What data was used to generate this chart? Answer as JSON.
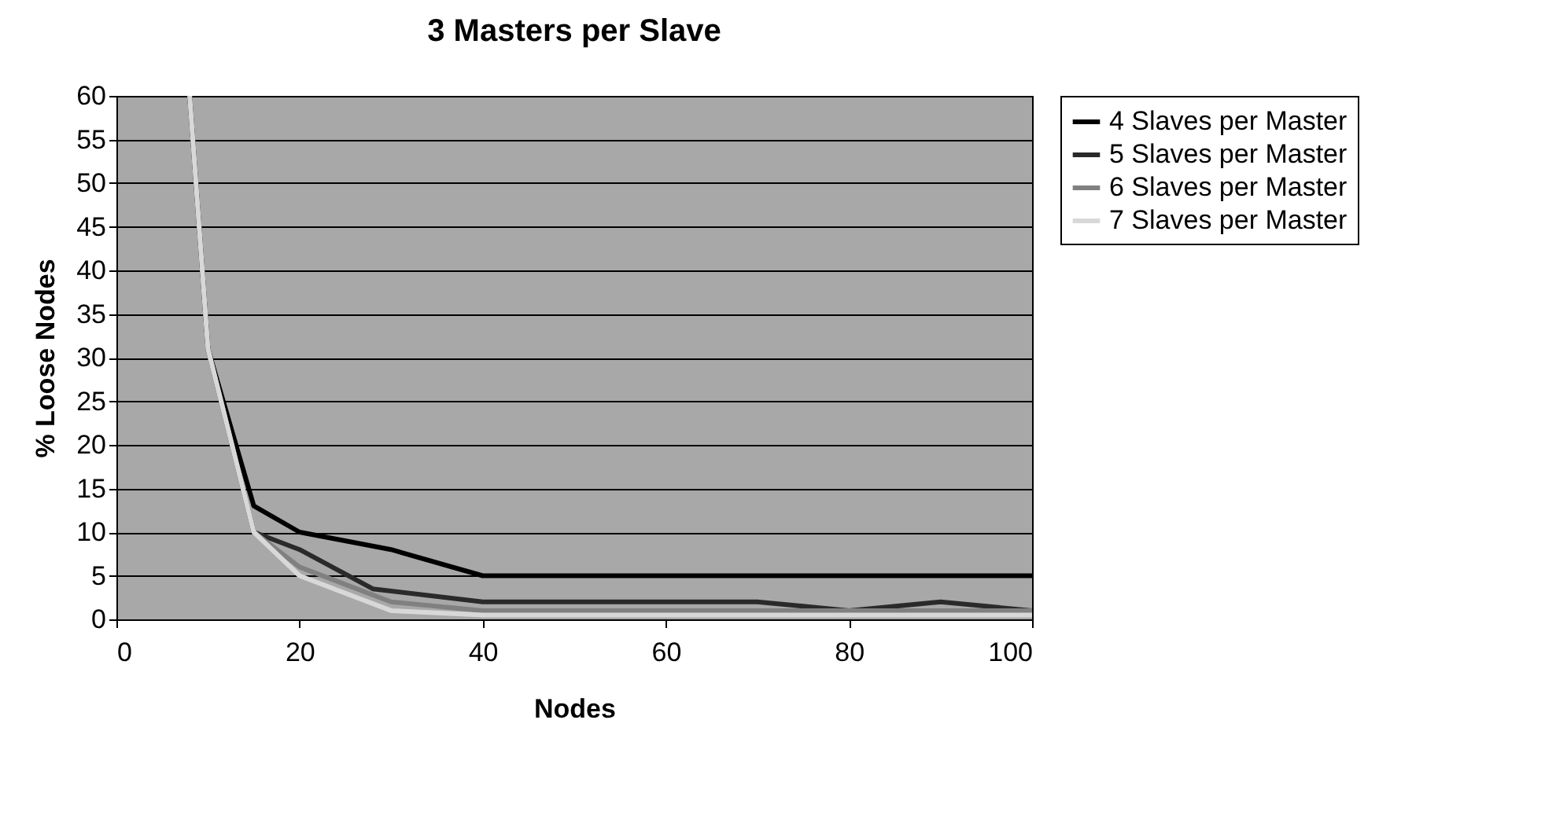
{
  "chart_data": {
    "type": "line",
    "title": "3 Masters per Slave",
    "xlabel": "Nodes",
    "ylabel": "% Loose Nodes",
    "xlim": [
      0,
      100
    ],
    "xticks": [
      0,
      20,
      40,
      60,
      80,
      100
    ],
    "ylim": [
      0,
      60
    ],
    "yticks": [
      0,
      5,
      10,
      15,
      20,
      25,
      30,
      35,
      40,
      45,
      50,
      55,
      60
    ],
    "grid": "y",
    "legend": "right",
    "series": [
      {
        "name": "4 Slaves per Master",
        "color": "#000000",
        "x": [
          8,
          10,
          15,
          20,
          30,
          40,
          50,
          60,
          70,
          80,
          90,
          100
        ],
        "values": [
          60,
          31,
          13,
          10,
          8,
          5,
          5,
          5,
          5,
          5,
          5,
          5
        ]
      },
      {
        "name": "5 Slaves per Master",
        "color": "#2a2a2a",
        "x": [
          8,
          10,
          15,
          20,
          28,
          40,
          50,
          60,
          70,
          80,
          90,
          100
        ],
        "values": [
          60,
          31,
          10,
          8,
          3.5,
          2,
          2,
          2,
          2,
          1,
          2,
          1
        ]
      },
      {
        "name": "6 Slaves per Master",
        "color": "#808080",
        "x": [
          8,
          10,
          15,
          20,
          30,
          40,
          50,
          60,
          70,
          80,
          90,
          100
        ],
        "values": [
          60,
          31,
          10,
          6,
          2,
          1,
          1,
          1,
          1,
          1,
          1,
          1
        ]
      },
      {
        "name": "7 Slaves per Master",
        "color": "#d8d8d8",
        "x": [
          8,
          10,
          15,
          20,
          30,
          40,
          50,
          60,
          70,
          80,
          90,
          100
        ],
        "values": [
          60,
          31,
          10,
          5,
          1,
          0.5,
          0.5,
          0.5,
          0.5,
          0.5,
          0.5,
          0.5
        ]
      }
    ]
  }
}
